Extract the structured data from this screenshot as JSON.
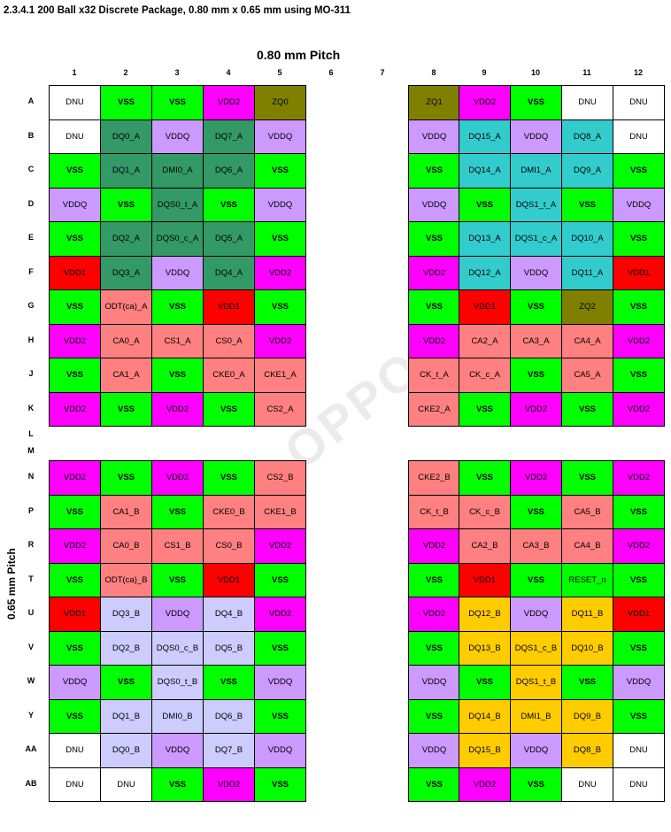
{
  "heading": "2.3.4.1  200 Ball x32 Discrete Package, 0.80 mm x 0.65 mm using MO-311",
  "pitch_horizontal": "0.80 mm Pitch",
  "pitch_vertical": "0.65 mm Pitch",
  "watermark": "OPPO",
  "columns": [
    "1",
    "2",
    "3",
    "4",
    "5",
    "6",
    "7",
    "8",
    "9",
    "10",
    "11",
    "12"
  ],
  "colors": {
    "DNU": "#ffffff",
    "VSS": "#00ff00",
    "VDD2": "#ff00ff",
    "VDD1": "#ff0000",
    "VDDQ": "#cc99ff",
    "ZQ": "#808000",
    "CA": "#ff8080",
    "DQ_A_left": "#339966",
    "DQ_A_right": "#33cccc",
    "DQ_B_left": "#ccccff",
    "DQ_B_right": "#ffcc00"
  },
  "rows": [
    {
      "label": "A",
      "left": [
        [
          "DNU",
          "DNU"
        ],
        [
          "VSS",
          "VSS"
        ],
        [
          "VSS",
          "VSS"
        ],
        [
          "VDD2",
          "VDD2"
        ],
        [
          "ZQ0",
          "ZQ"
        ]
      ],
      "right": [
        [
          "ZQ1",
          "ZQ"
        ],
        [
          "VDD2",
          "VDD2"
        ],
        [
          "VSS",
          "VSS"
        ],
        [
          "DNU",
          "DNU"
        ],
        [
          "DNU",
          "DNU"
        ]
      ]
    },
    {
      "label": "B",
      "left": [
        [
          "DNU",
          "DNU"
        ],
        [
          "DQ0_A",
          "DQ_A_left"
        ],
        [
          "VDDQ",
          "VDDQ"
        ],
        [
          "DQ7_A",
          "DQ_A_left"
        ],
        [
          "VDDQ",
          "VDDQ"
        ]
      ],
      "right": [
        [
          "VDDQ",
          "VDDQ"
        ],
        [
          "DQ15_A",
          "DQ_A_right"
        ],
        [
          "VDDQ",
          "VDDQ"
        ],
        [
          "DQ8_A",
          "DQ_A_right"
        ],
        [
          "DNU",
          "DNU"
        ]
      ]
    },
    {
      "label": "C",
      "left": [
        [
          "VSS",
          "VSS"
        ],
        [
          "DQ1_A",
          "DQ_A_left"
        ],
        [
          "DMI0_A",
          "DQ_A_left"
        ],
        [
          "DQ6_A",
          "DQ_A_left"
        ],
        [
          "VSS",
          "VSS"
        ]
      ],
      "right": [
        [
          "VSS",
          "VSS"
        ],
        [
          "DQ14_A",
          "DQ_A_right"
        ],
        [
          "DMI1_A",
          "DQ_A_right"
        ],
        [
          "DQ9_A",
          "DQ_A_right"
        ],
        [
          "VSS",
          "VSS"
        ]
      ]
    },
    {
      "label": "D",
      "left": [
        [
          "VDDQ",
          "VDDQ"
        ],
        [
          "VSS",
          "VSS"
        ],
        [
          "DQS0_t_A",
          "DQ_A_left"
        ],
        [
          "VSS",
          "VSS"
        ],
        [
          "VDDQ",
          "VDDQ"
        ]
      ],
      "right": [
        [
          "VDDQ",
          "VDDQ"
        ],
        [
          "VSS",
          "VSS"
        ],
        [
          "DQS1_t_A",
          "DQ_A_right"
        ],
        [
          "VSS",
          "VSS"
        ],
        [
          "VDDQ",
          "VDDQ"
        ]
      ]
    },
    {
      "label": "E",
      "left": [
        [
          "VSS",
          "VSS"
        ],
        [
          "DQ2_A",
          "DQ_A_left"
        ],
        [
          "DQS0_c_A",
          "DQ_A_left"
        ],
        [
          "DQ5_A",
          "DQ_A_left"
        ],
        [
          "VSS",
          "VSS"
        ]
      ],
      "right": [
        [
          "VSS",
          "VSS"
        ],
        [
          "DQ13_A",
          "DQ_A_right"
        ],
        [
          "DQS1_c_A",
          "DQ_A_right"
        ],
        [
          "DQ10_A",
          "DQ_A_right"
        ],
        [
          "VSS",
          "VSS"
        ]
      ]
    },
    {
      "label": "F",
      "left": [
        [
          "VDD1",
          "VDD1"
        ],
        [
          "DQ3_A",
          "DQ_A_left"
        ],
        [
          "VDDQ",
          "VDDQ"
        ],
        [
          "DQ4_A",
          "DQ_A_left"
        ],
        [
          "VDD2",
          "VDD2"
        ]
      ],
      "right": [
        [
          "VDD2",
          "VDD2"
        ],
        [
          "DQ12_A",
          "DQ_A_right"
        ],
        [
          "VDDQ",
          "VDDQ"
        ],
        [
          "DQ11_A",
          "DQ_A_right"
        ],
        [
          "VDD1",
          "VDD1"
        ]
      ]
    },
    {
      "label": "G",
      "left": [
        [
          "VSS",
          "VSS"
        ],
        [
          "ODT(ca)_A",
          "CA"
        ],
        [
          "VSS",
          "VSS"
        ],
        [
          "VDD1",
          "VDD1"
        ],
        [
          "VSS",
          "VSS"
        ]
      ],
      "right": [
        [
          "VSS",
          "VSS"
        ],
        [
          "VDD1",
          "VDD1"
        ],
        [
          "VSS",
          "VSS"
        ],
        [
          "ZQ2",
          "ZQ"
        ],
        [
          "VSS",
          "VSS"
        ]
      ]
    },
    {
      "label": "H",
      "left": [
        [
          "VDD2",
          "VDD2"
        ],
        [
          "CA0_A",
          "CA"
        ],
        [
          "CS1_A",
          "CA"
        ],
        [
          "CS0_A",
          "CA"
        ],
        [
          "VDD2",
          "VDD2"
        ]
      ],
      "right": [
        [
          "VDD2",
          "VDD2"
        ],
        [
          "CA2_A",
          "CA"
        ],
        [
          "CA3_A",
          "CA"
        ],
        [
          "CA4_A",
          "CA"
        ],
        [
          "VDD2",
          "VDD2"
        ]
      ]
    },
    {
      "label": "J",
      "left": [
        [
          "VSS",
          "VSS"
        ],
        [
          "CA1_A",
          "CA"
        ],
        [
          "VSS",
          "VSS"
        ],
        [
          "CKE0_A",
          "CA"
        ],
        [
          "CKE1_A",
          "CA"
        ]
      ],
      "right": [
        [
          "CK_t_A",
          "CA"
        ],
        [
          "CK_c_A",
          "CA"
        ],
        [
          "VSS",
          "VSS"
        ],
        [
          "CA5_A",
          "CA"
        ],
        [
          "VSS",
          "VSS"
        ]
      ]
    },
    {
      "label": "K",
      "left": [
        [
          "VDD2",
          "VDD2"
        ],
        [
          "VSS",
          "VSS"
        ],
        [
          "VDD2",
          "VDD2"
        ],
        [
          "VSS",
          "VSS"
        ],
        [
          "CS2_A",
          "CA"
        ]
      ],
      "right": [
        [
          "CKE2_A",
          "CA"
        ],
        [
          "VSS",
          "VSS"
        ],
        [
          "VDD2",
          "VDD2"
        ],
        [
          "VSS",
          "VSS"
        ],
        [
          "VDD2",
          "VDD2"
        ]
      ]
    },
    {
      "label": "L",
      "left": [],
      "right": []
    },
    {
      "label": "M",
      "left": [],
      "right": []
    },
    {
      "label": "N",
      "left": [
        [
          "VDD2",
          "VDD2"
        ],
        [
          "VSS",
          "VSS"
        ],
        [
          "VDD2",
          "VDD2"
        ],
        [
          "VSS",
          "VSS"
        ],
        [
          "CS2_B",
          "CA"
        ]
      ],
      "right": [
        [
          "CKE2_B",
          "CA"
        ],
        [
          "VSS",
          "VSS"
        ],
        [
          "VDD2",
          "VDD2"
        ],
        [
          "VSS",
          "VSS"
        ],
        [
          "VDD2",
          "VDD2"
        ]
      ]
    },
    {
      "label": "P",
      "left": [
        [
          "VSS",
          "VSS"
        ],
        [
          "CA1_B",
          "CA"
        ],
        [
          "VSS",
          "VSS"
        ],
        [
          "CKE0_B",
          "CA"
        ],
        [
          "CKE1_B",
          "CA"
        ]
      ],
      "right": [
        [
          "CK_t_B",
          "CA"
        ],
        [
          "CK_c_B",
          "CA"
        ],
        [
          "VSS",
          "VSS"
        ],
        [
          "CA5_B",
          "CA"
        ],
        [
          "VSS",
          "VSS"
        ]
      ]
    },
    {
      "label": "R",
      "left": [
        [
          "VDD2",
          "VDD2"
        ],
        [
          "CA0_B",
          "CA"
        ],
        [
          "CS1_B",
          "CA"
        ],
        [
          "CS0_B",
          "CA"
        ],
        [
          "VDD2",
          "VDD2"
        ]
      ],
      "right": [
        [
          "VDD2",
          "VDD2"
        ],
        [
          "CA2_B",
          "CA"
        ],
        [
          "CA3_B",
          "CA"
        ],
        [
          "CA4_B",
          "CA"
        ],
        [
          "VDD2",
          "VDD2"
        ]
      ]
    },
    {
      "label": "T",
      "left": [
        [
          "VSS",
          "VSS"
        ],
        [
          "ODT(ca)_B",
          "CA"
        ],
        [
          "VSS",
          "VSS"
        ],
        [
          "VDD1",
          "VDD1"
        ],
        [
          "VSS",
          "VSS"
        ]
      ],
      "right": [
        [
          "VSS",
          "VSS"
        ],
        [
          "VDD1",
          "VDD1"
        ],
        [
          "VSS",
          "VSS"
        ],
        [
          "RESET_n",
          "VSS"
        ],
        [
          "VSS",
          "VSS"
        ]
      ]
    },
    {
      "label": "U",
      "left": [
        [
          "VDD1",
          "VDD1"
        ],
        [
          "DQ3_B",
          "DQ_B_left"
        ],
        [
          "VDDQ",
          "VDDQ"
        ],
        [
          "DQ4_B",
          "DQ_B_left"
        ],
        [
          "VDD2",
          "VDD2"
        ]
      ],
      "right": [
        [
          "VDD2",
          "VDD2"
        ],
        [
          "DQ12_B",
          "DQ_B_right"
        ],
        [
          "VDDQ",
          "VDDQ"
        ],
        [
          "DQ11_B",
          "DQ_B_right"
        ],
        [
          "VDD1",
          "VDD1"
        ]
      ]
    },
    {
      "label": "V",
      "left": [
        [
          "VSS",
          "VSS"
        ],
        [
          "DQ2_B",
          "DQ_B_left"
        ],
        [
          "DQS0_c_B",
          "DQ_B_left"
        ],
        [
          "DQ5_B",
          "DQ_B_left"
        ],
        [
          "VSS",
          "VSS"
        ]
      ],
      "right": [
        [
          "VSS",
          "VSS"
        ],
        [
          "DQ13_B",
          "DQ_B_right"
        ],
        [
          "DQS1_c_B",
          "DQ_B_right"
        ],
        [
          "DQ10_B",
          "DQ_B_right"
        ],
        [
          "VSS",
          "VSS"
        ]
      ]
    },
    {
      "label": "W",
      "left": [
        [
          "VDDQ",
          "VDDQ"
        ],
        [
          "VSS",
          "VSS"
        ],
        [
          "DQS0_t_B",
          "DQ_B_left"
        ],
        [
          "VSS",
          "VSS"
        ],
        [
          "VDDQ",
          "VDDQ"
        ]
      ],
      "right": [
        [
          "VDDQ",
          "VDDQ"
        ],
        [
          "VSS",
          "VSS"
        ],
        [
          "DQS1_t_B",
          "DQ_B_right"
        ],
        [
          "VSS",
          "VSS"
        ],
        [
          "VDDQ",
          "VDDQ"
        ]
      ]
    },
    {
      "label": "Y",
      "left": [
        [
          "VSS",
          "VSS"
        ],
        [
          "DQ1_B",
          "DQ_B_left"
        ],
        [
          "DMI0_B",
          "DQ_B_left"
        ],
        [
          "DQ6_B",
          "DQ_B_left"
        ],
        [
          "VSS",
          "VSS"
        ]
      ],
      "right": [
        [
          "VSS",
          "VSS"
        ],
        [
          "DQ14_B",
          "DQ_B_right"
        ],
        [
          "DMI1_B",
          "DQ_B_right"
        ],
        [
          "DQ9_B",
          "DQ_B_right"
        ],
        [
          "VSS",
          "VSS"
        ]
      ]
    },
    {
      "label": "AA",
      "left": [
        [
          "DNU",
          "DNU"
        ],
        [
          "DQ0_B",
          "DQ_B_left"
        ],
        [
          "VDDQ",
          "VDDQ"
        ],
        [
          "DQ7_B",
          "DQ_B_left"
        ],
        [
          "VDDQ",
          "VDDQ"
        ]
      ],
      "right": [
        [
          "VDDQ",
          "VDDQ"
        ],
        [
          "DQ15_B",
          "DQ_B_right"
        ],
        [
          "VDDQ",
          "VDDQ"
        ],
        [
          "DQ8_B",
          "DQ_B_right"
        ],
        [
          "DNU",
          "DNU"
        ]
      ]
    },
    {
      "label": "AB",
      "left": [
        [
          "DNU",
          "DNU"
        ],
        [
          "DNU",
          "DNU"
        ],
        [
          "VSS",
          "VSS"
        ],
        [
          "VDD2",
          "VDD2"
        ],
        [
          "VSS",
          "VSS"
        ]
      ],
      "right": [
        [
          "VSS",
          "VSS"
        ],
        [
          "VDD2",
          "VDD2"
        ],
        [
          "VSS",
          "VSS"
        ],
        [
          "DNU",
          "DNU"
        ],
        [
          "DNU",
          "DNU"
        ]
      ]
    }
  ]
}
